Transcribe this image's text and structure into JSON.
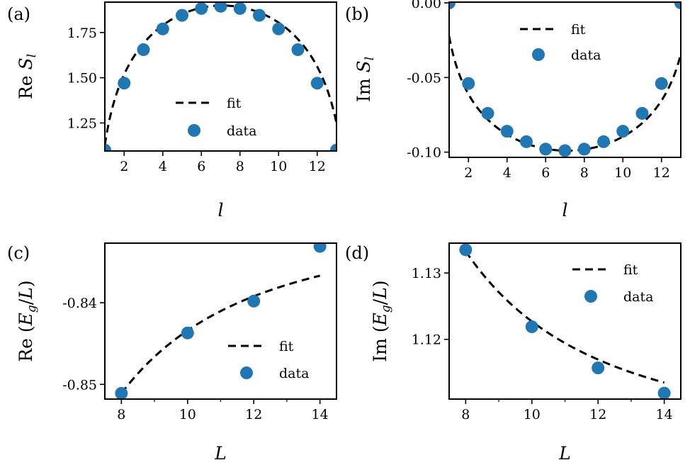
{
  "chart_data": [
    {
      "type": "line+scatter",
      "panel": "(a)",
      "xlabel": "l",
      "ylabel": "Re S_l",
      "ylabel_prefix": "Re",
      "ylabel_var": "S",
      "ylabel_sub": "l",
      "xlim": [
        1,
        13
      ],
      "ylim": [
        1.095,
        1.918
      ],
      "xticks": [
        2,
        4,
        6,
        8,
        10,
        12
      ],
      "yticks": [
        1.25,
        1.5,
        1.75
      ],
      "ytick_labels": [
        "1.25",
        "1.50",
        "1.75"
      ],
      "legend": [
        "fit",
        "data"
      ],
      "legend_loc": "lower-center",
      "data": {
        "x": [
          1,
          2,
          3,
          4,
          5,
          6,
          7,
          8,
          9,
          10,
          11,
          12,
          13
        ],
        "y": [
          1.1,
          1.47,
          1.655,
          1.77,
          1.845,
          1.883,
          1.895,
          1.883,
          1.845,
          1.77,
          1.655,
          1.47,
          1.1
        ]
      },
      "fit": {
        "model": "A*log(sin(pi*(x-0.5)/13.2))+B",
        "A": 0.362,
        "B": 1.899,
        "x0": 0.5,
        "L": 13.2
      }
    },
    {
      "type": "line+scatter",
      "panel": "(b)",
      "xlabel": "l",
      "ylabel": "Im S_l",
      "ylabel_prefix": "Im",
      "ylabel_var": "S",
      "ylabel_sub": "l",
      "xlim": [
        1,
        13
      ],
      "ylim": [
        -0.1035,
        0.0005
      ],
      "xticks": [
        2,
        4,
        6,
        8,
        10,
        12
      ],
      "yticks": [
        0.0,
        -0.05,
        -0.1
      ],
      "ytick_labels": [
        "0.00",
        "-0.05",
        "-0.10"
      ],
      "legend": [
        "fit",
        "data"
      ],
      "legend_loc": "upper-center",
      "data": {
        "x": [
          1,
          2,
          3,
          4,
          5,
          6,
          7,
          8,
          9,
          10,
          11,
          12,
          13
        ],
        "y": [
          0.0,
          -0.054,
          -0.074,
          -0.086,
          -0.093,
          -0.098,
          -0.099,
          -0.098,
          -0.093,
          -0.086,
          -0.074,
          -0.054,
          0.0
        ]
      },
      "fit": {
        "model": "A*log(sin(pi*(x-0.5)/13.2))+B",
        "A": -0.036,
        "B": -0.099,
        "x0": 0.5,
        "L": 13.2
      }
    },
    {
      "type": "line+scatter",
      "panel": "(c)",
      "xlabel": "L",
      "ylabel": "Re (E_g/L)",
      "ylabel_prefix": "Re",
      "ylabel_var": "E",
      "ylabel_sub": "g",
      "ylabel_den": "L",
      "xlim": [
        7.5,
        14.5
      ],
      "ylim": [
        -0.8518,
        -0.8327
      ],
      "xticks": [
        8,
        10,
        12,
        14
      ],
      "yticks": [
        -0.84,
        -0.85
      ],
      "ytick_labels": [
        "-0.84",
        "-0.85"
      ],
      "legend": [
        "fit",
        "data"
      ],
      "legend_loc": "lower-right",
      "data": {
        "x": [
          8,
          10,
          12,
          14
        ],
        "y": [
          -0.8511,
          -0.8437,
          -0.8398,
          -0.8331
        ]
      },
      "fit": {
        "model": "a+b/x^2",
        "a": -0.8297,
        "b": -1.37
      }
    },
    {
      "type": "line+scatter",
      "panel": "(d)",
      "xlabel": "L",
      "ylabel": "Im (E_g/L)",
      "ylabel_prefix": "Im",
      "ylabel_var": "E",
      "ylabel_sub": "g",
      "ylabel_den": "L",
      "xlim": [
        7.5,
        14.5
      ],
      "ylim": [
        1.111,
        1.1345
      ],
      "xticks": [
        8,
        10,
        12,
        14
      ],
      "yticks": [
        1.12,
        1.13
      ],
      "ytick_labels": [
        "1.12",
        "1.13"
      ],
      "legend": [
        "fit",
        "data"
      ],
      "legend_loc": "upper-right",
      "data": {
        "x": [
          8,
          10,
          12,
          14
        ],
        "y": [
          1.1335,
          1.1219,
          1.1157,
          1.1119
        ]
      },
      "fit": {
        "model": "a+b/x^2",
        "a": 1.1039,
        "b": 1.88
      }
    }
  ],
  "style": {
    "series_color": "#1f77b4",
    "fit_color": "#000000",
    "axis_color": "#000000"
  }
}
